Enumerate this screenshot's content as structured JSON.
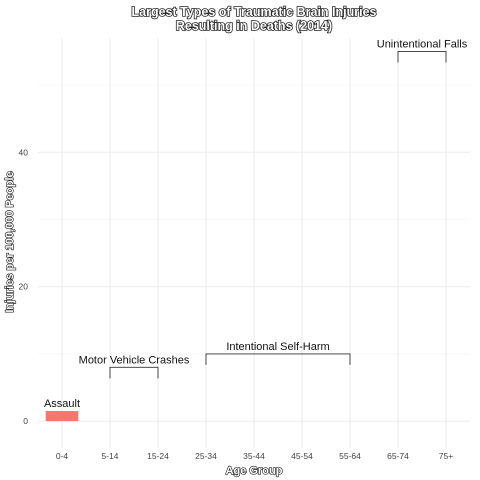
{
  "chart_data": {
    "type": "bar",
    "title": [
      "Largest Types of Traumatic Brain Injuries",
      "Resulting in Deaths (2014)"
    ],
    "xlabel": "Age Group",
    "ylabel": "Injuries per 100,000 People",
    "categories": [
      "0-4",
      "5-14",
      "15-24",
      "25-34",
      "35-44",
      "45-54",
      "55-64",
      "65-74",
      "75+"
    ],
    "ylim": [
      -4,
      57
    ],
    "yticks": [
      0,
      20,
      40
    ],
    "grid": true,
    "bars": [
      {
        "category": "0-4",
        "value": 1.5,
        "color": "#F8766D"
      }
    ],
    "annotations": [
      {
        "label": "Assault",
        "from": "0-4",
        "to": "0-4",
        "value": 1.5,
        "bracket": false
      },
      {
        "label": "Motor Vehicle Crashes",
        "from": "5-14",
        "to": "15-24",
        "value": 8,
        "bracket": true
      },
      {
        "label": "Intentional Self-Harm",
        "from": "25-34",
        "to": "55-64",
        "value": 10,
        "bracket": true
      },
      {
        "label": "Unintentional Falls",
        "from": "65-74",
        "to": "75+",
        "value": 55,
        "bracket": true
      }
    ]
  }
}
